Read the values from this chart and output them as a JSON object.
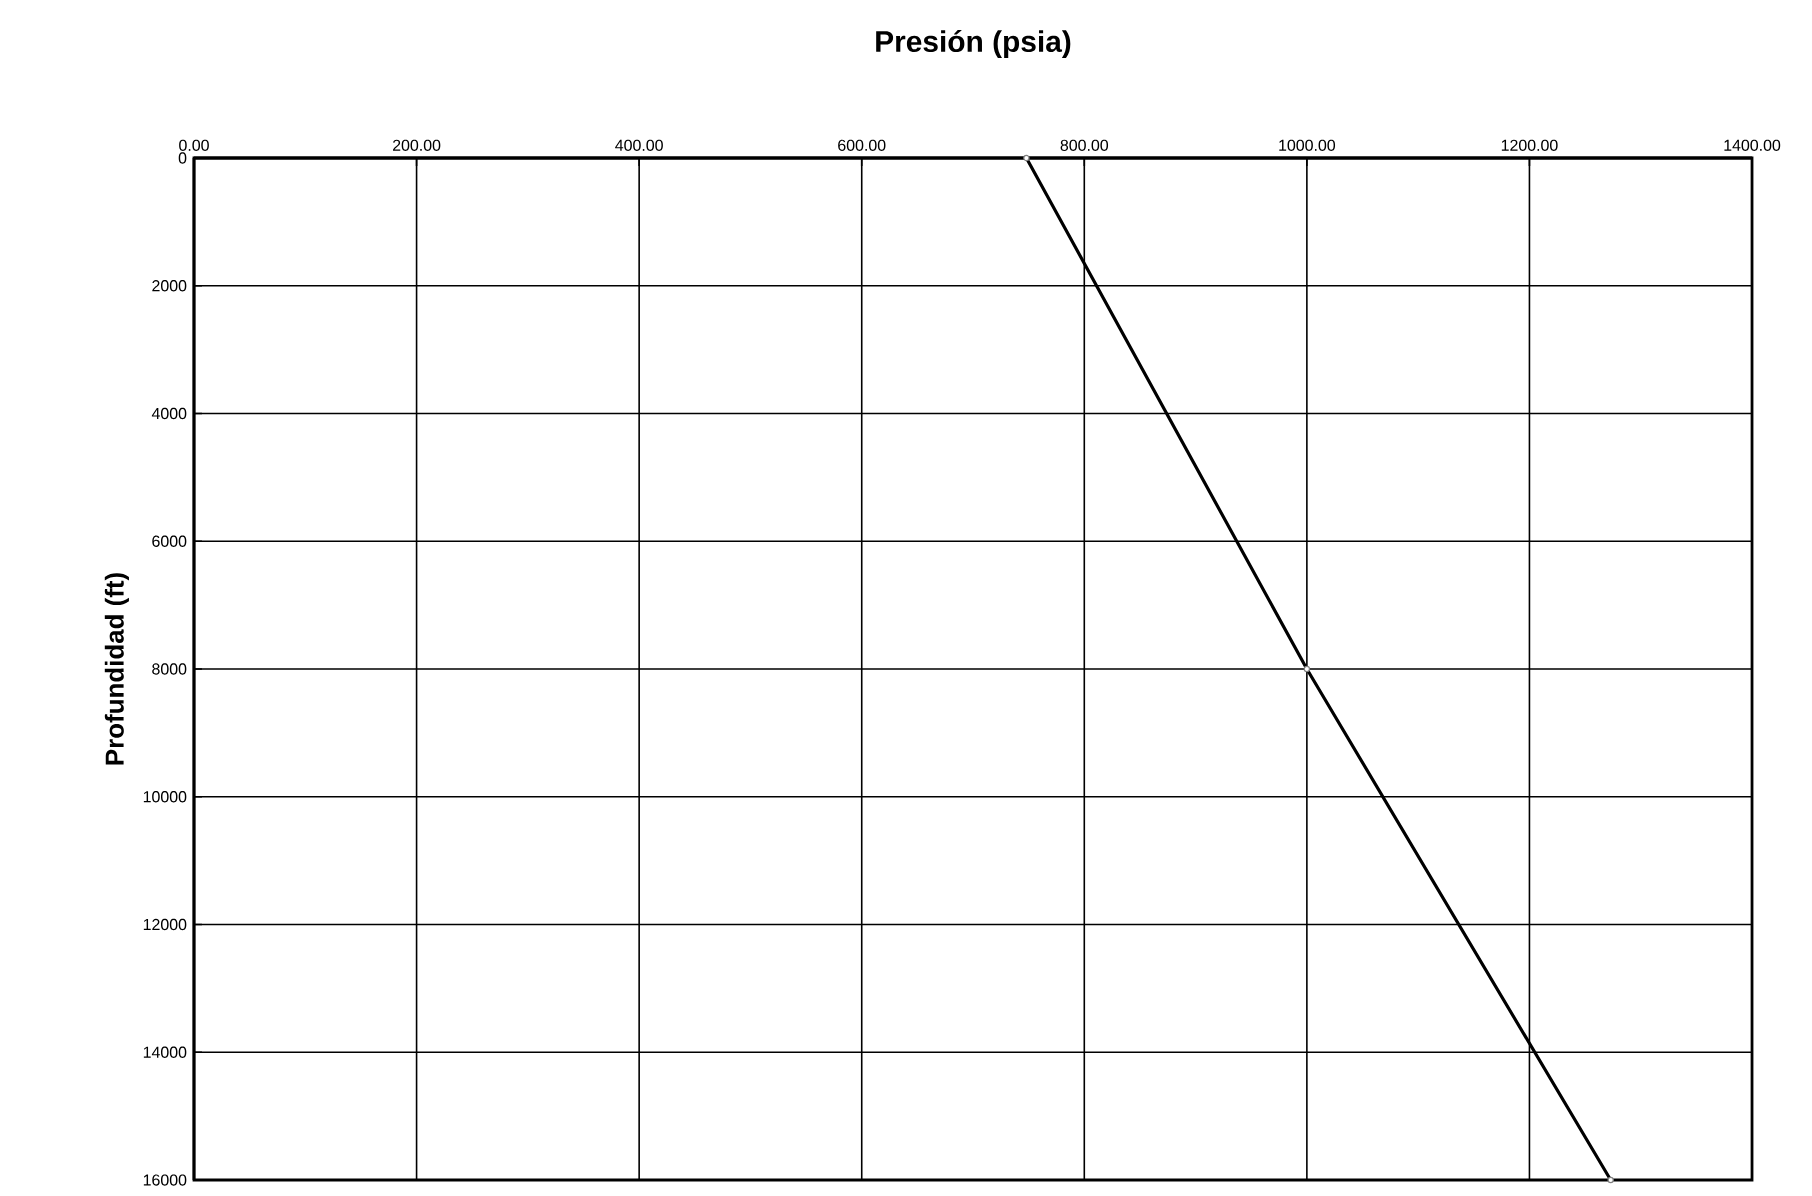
{
  "chart_data": {
    "type": "line",
    "xlabel": "Presión (psia)",
    "ylabel": "Profundidad (ft)",
    "x": [
      748,
      1000,
      1273
    ],
    "series": [
      {
        "color": "#000000",
        "values": [
          0,
          8000,
          16000
        ]
      }
    ],
    "xlim": [
      0,
      1400
    ],
    "xticks": [
      {
        "value": 0,
        "label": "0.00"
      },
      {
        "value": 200,
        "label": "200.00"
      },
      {
        "value": 400,
        "label": "400.00"
      },
      {
        "value": 600,
        "label": "600.00"
      },
      {
        "value": 800,
        "label": "800.00"
      },
      {
        "value": 1000,
        "label": "1000.00"
      },
      {
        "value": 1200,
        "label": "1200.00"
      },
      {
        "value": 1400,
        "label": "1400.00"
      }
    ],
    "ylim": [
      16000,
      0
    ],
    "yticks": [
      0,
      2000,
      4000,
      6000,
      8000,
      10000,
      12000,
      14000,
      16000
    ],
    "grid": true,
    "marker": "circle",
    "line_style": "solid"
  }
}
